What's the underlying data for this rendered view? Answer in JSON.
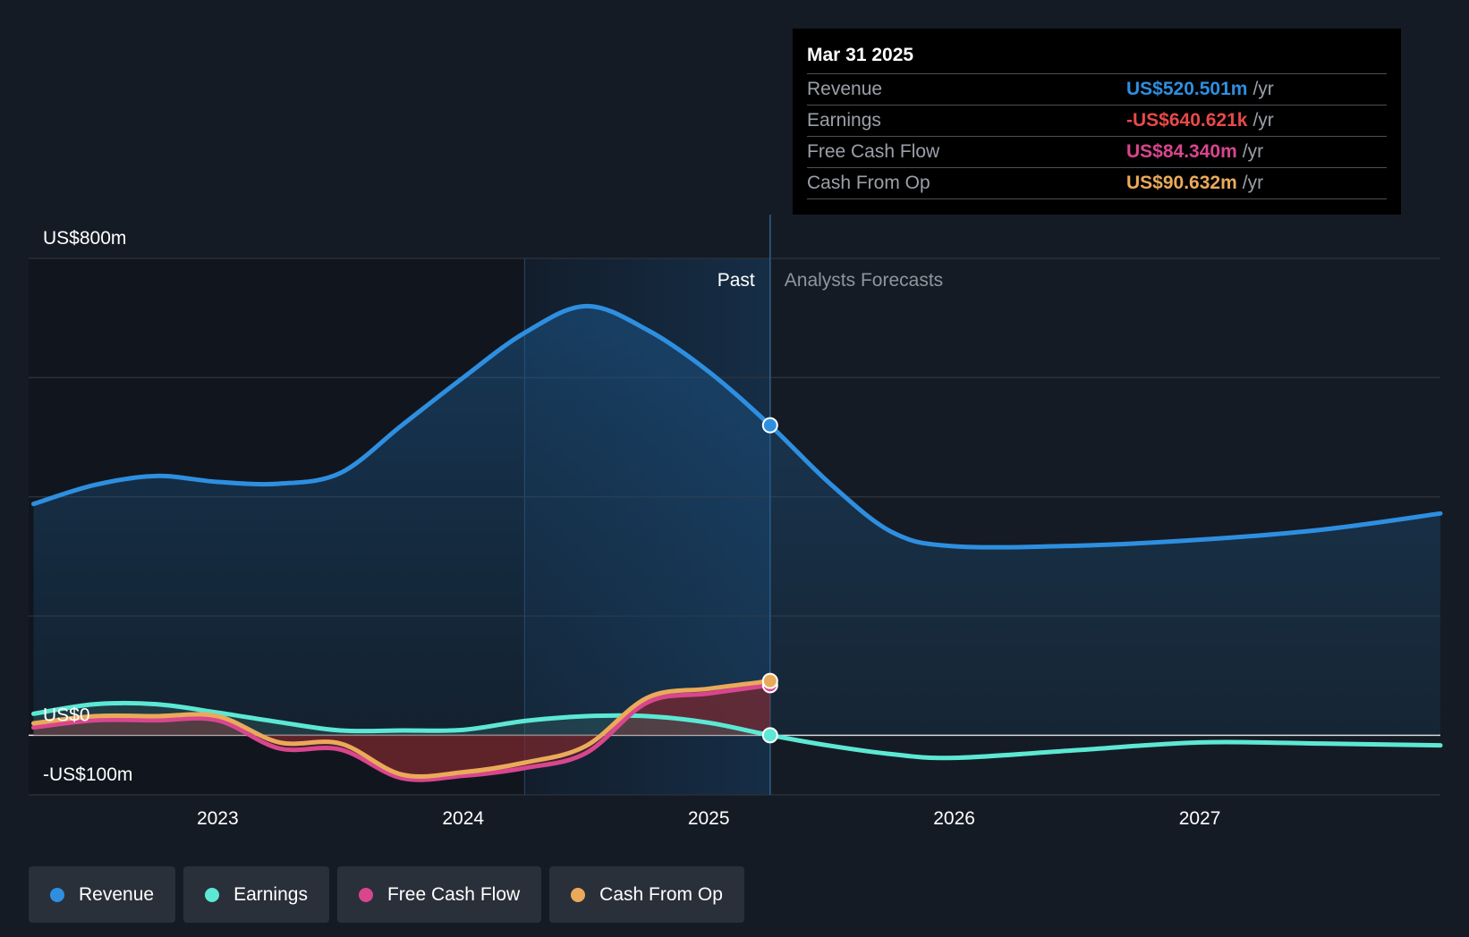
{
  "tooltip": {
    "date": "Mar 31 2025",
    "rows": [
      {
        "label": "Revenue",
        "value": "US$520.501m",
        "unit": "/yr",
        "color": "#2e8fe0"
      },
      {
        "label": "Earnings",
        "value": "-US$640.621k",
        "unit": "/yr",
        "color": "#e84949"
      },
      {
        "label": "Free Cash Flow",
        "value": "US$84.340m",
        "unit": "/yr",
        "color": "#d8468e"
      },
      {
        "label": "Cash From Op",
        "value": "US$90.632m",
        "unit": "/yr",
        "color": "#eaaa5a"
      }
    ]
  },
  "chart_data": {
    "type": "line",
    "y_labels": {
      "top": "US$800m",
      "zero": "US$0",
      "bottom": "-US$100m"
    },
    "ylim": [
      -100,
      800
    ],
    "xlim": [
      2022.23,
      2027.98
    ],
    "x_ticks": [
      2023,
      2024,
      2025,
      2026,
      2027
    ],
    "x_tick_labels": [
      "2023",
      "2024",
      "2025",
      "2026",
      "2027"
    ],
    "past_label": "Past",
    "forecast_label": "Analysts Forecasts",
    "divider_x": 2025.25,
    "highlight_start_x": 2024.25,
    "series": [
      {
        "name": "Revenue",
        "color": "#2e8fe0",
        "points": [
          [
            2022.25,
            388
          ],
          [
            2022.5,
            420
          ],
          [
            2022.75,
            435
          ],
          [
            2023.0,
            425
          ],
          [
            2023.25,
            422
          ],
          [
            2023.5,
            440
          ],
          [
            2023.75,
            520
          ],
          [
            2024.0,
            600
          ],
          [
            2024.25,
            675
          ],
          [
            2024.5,
            720
          ],
          [
            2024.75,
            680
          ],
          [
            2025.0,
            610
          ],
          [
            2025.25,
            520
          ],
          [
            2025.5,
            420
          ],
          [
            2025.75,
            340
          ],
          [
            2026.0,
            317
          ],
          [
            2026.5,
            318
          ],
          [
            2027.0,
            328
          ],
          [
            2027.5,
            345
          ],
          [
            2027.98,
            372
          ]
        ]
      },
      {
        "name": "Earnings",
        "color": "#5ce8d4",
        "points": [
          [
            2022.25,
            36
          ],
          [
            2022.5,
            52
          ],
          [
            2022.75,
            52
          ],
          [
            2023.0,
            38
          ],
          [
            2023.25,
            22
          ],
          [
            2023.5,
            8
          ],
          [
            2023.75,
            8
          ],
          [
            2024.0,
            9
          ],
          [
            2024.25,
            24
          ],
          [
            2024.5,
            32
          ],
          [
            2024.75,
            32
          ],
          [
            2025.0,
            21
          ],
          [
            2025.25,
            0
          ],
          [
            2025.5,
            -18
          ],
          [
            2025.75,
            -32
          ],
          [
            2026.0,
            -38
          ],
          [
            2026.5,
            -25
          ],
          [
            2027.0,
            -12
          ],
          [
            2027.5,
            -14
          ],
          [
            2027.98,
            -17
          ]
        ]
      },
      {
        "name": "Free Cash Flow",
        "color": "#d8468e",
        "points": [
          [
            2022.25,
            13
          ],
          [
            2022.5,
            25
          ],
          [
            2022.75,
            25
          ],
          [
            2023.0,
            25
          ],
          [
            2023.25,
            -22
          ],
          [
            2023.5,
            -24
          ],
          [
            2023.75,
            -72
          ],
          [
            2024.0,
            -68
          ],
          [
            2024.25,
            -55
          ],
          [
            2024.5,
            -30
          ],
          [
            2024.75,
            55
          ],
          [
            2025.0,
            70
          ],
          [
            2025.25,
            84
          ]
        ]
      },
      {
        "name": "Cash From Op",
        "color": "#eaaa5a",
        "points": [
          [
            2022.25,
            20
          ],
          [
            2022.5,
            32
          ],
          [
            2022.75,
            32
          ],
          [
            2023.0,
            32
          ],
          [
            2023.25,
            -12
          ],
          [
            2023.5,
            -14
          ],
          [
            2023.75,
            -66
          ],
          [
            2024.0,
            -62
          ],
          [
            2024.25,
            -46
          ],
          [
            2024.5,
            -18
          ],
          [
            2024.75,
            63
          ],
          [
            2025.0,
            78
          ],
          [
            2025.25,
            91
          ]
        ]
      }
    ],
    "tooltip_x": 2025.25
  },
  "legend": [
    {
      "label": "Revenue",
      "color": "#2e8fe0"
    },
    {
      "label": "Earnings",
      "color": "#5ce8d4"
    },
    {
      "label": "Free Cash Flow",
      "color": "#d8468e"
    },
    {
      "label": "Cash From Op",
      "color": "#eaaa5a"
    }
  ]
}
